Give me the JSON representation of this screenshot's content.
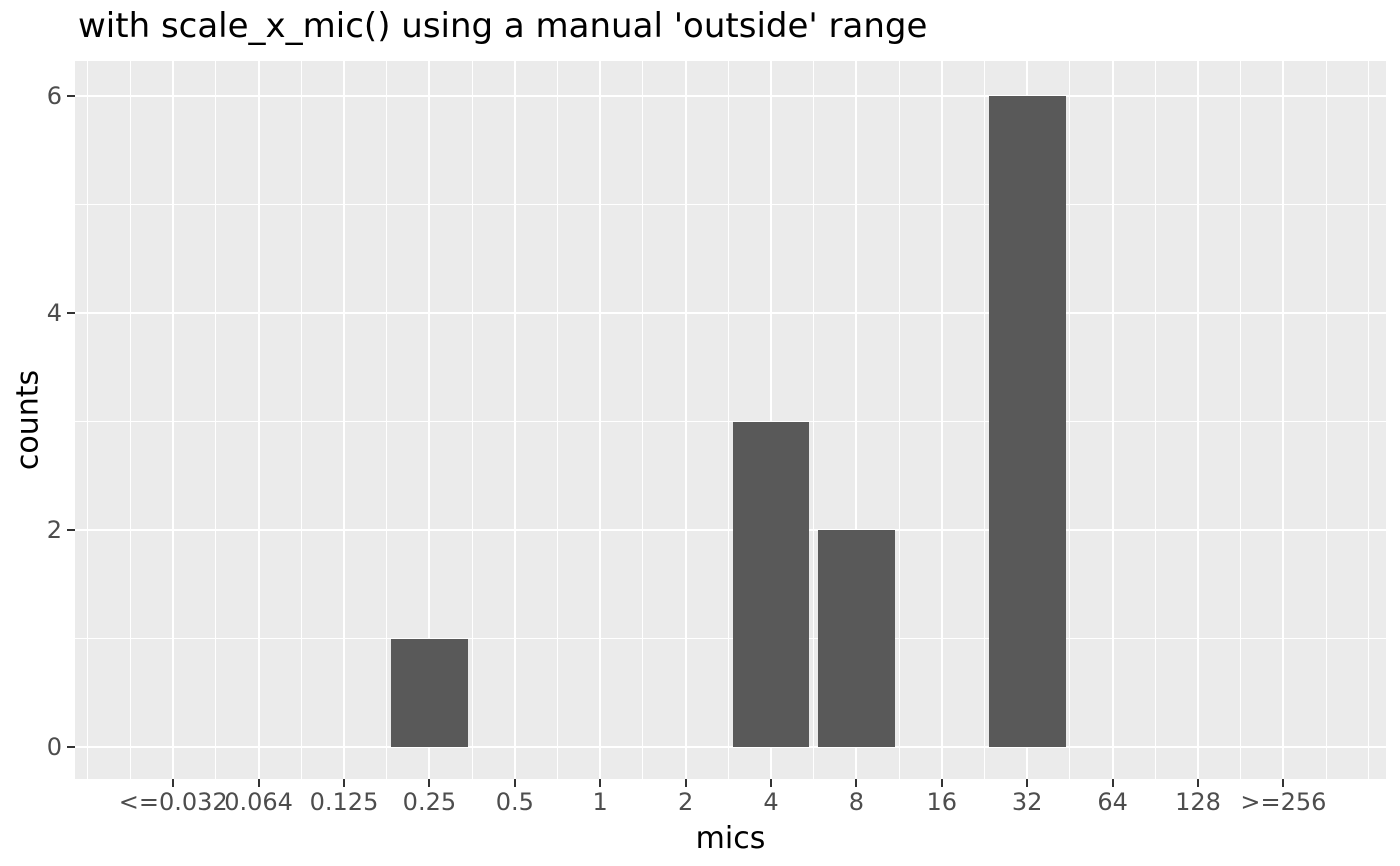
{
  "chart_data": {
    "type": "bar",
    "title": "with scale_x_mic() using a manual 'outside' range",
    "xlabel": "mics",
    "ylabel": "counts",
    "x_tick_labels": [
      "<=0.032",
      "0.064",
      "0.125",
      "0.25",
      "0.5",
      "1",
      "2",
      "4",
      "8",
      "16",
      "32",
      "64",
      "128",
      ">=256"
    ],
    "y_tick_labels": [
      "0",
      "2",
      "4",
      "6"
    ],
    "y_tick_values": [
      0,
      2,
      4,
      6
    ],
    "y_minor_values": [
      1,
      3,
      5
    ],
    "ylim": [
      0,
      6.3
    ],
    "x_scale": "log2 mic categories, manual outside range",
    "bars": [
      {
        "category": "0.25",
        "tick_index": 3,
        "count": 1
      },
      {
        "category": "4",
        "tick_index": 7,
        "count": 3
      },
      {
        "category": "8",
        "tick_index": 8,
        "count": 2
      },
      {
        "category": "32",
        "tick_index": 10,
        "count": 6
      }
    ],
    "legend": "none",
    "grid": {
      "major": true,
      "minor": true
    },
    "colors": {
      "bar_fill": "#595959",
      "panel_background": "#EBEBEB",
      "gridline": "#FFFFFF",
      "tick_label": "#4D4D4D",
      "tick_mark": "#333333",
      "text": "#000000",
      "page_background": "#FFFFFF"
    }
  }
}
